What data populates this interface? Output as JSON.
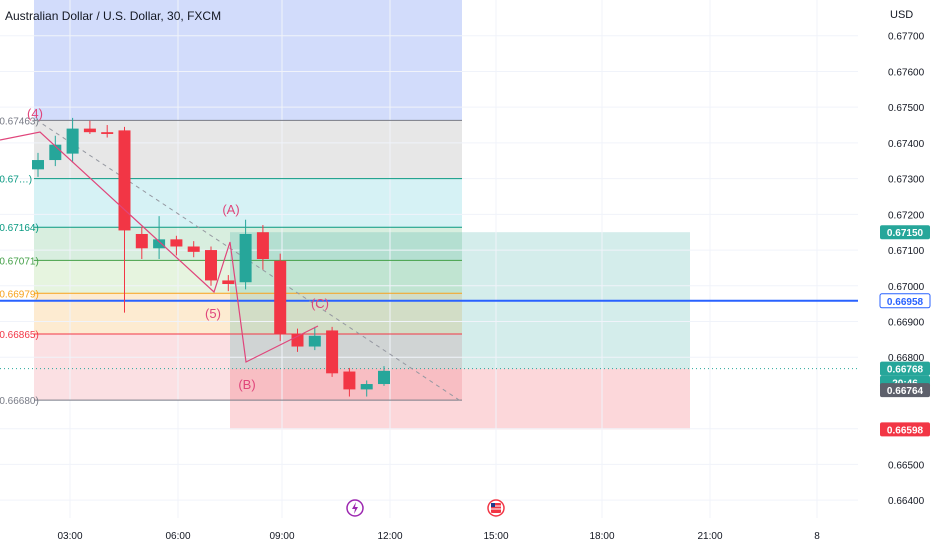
{
  "header": {
    "title": "Australian Dollar / U.S. Dollar, 30, FXCM",
    "currency": "USD"
  },
  "colors": {
    "up": "#26a69a",
    "down": "#f23645",
    "wave": "#e0457b",
    "blue_line": "#2962ff",
    "price_tag_current": "#26a69a",
    "price_tag_gray": "#5d606b",
    "target_tag": "#26a69a",
    "stop_tag": "#f23645"
  },
  "chart_data": {
    "type": "candlestick",
    "symbol": "Australian Dollar / U.S. Dollar",
    "timeframe": "30",
    "source": "FXCM",
    "ylim": [
      0.6635,
      0.678
    ],
    "y_ticks": [
      "0.67700",
      "0.67600",
      "0.67500",
      "0.67400",
      "0.67300",
      "0.67200",
      "0.67100",
      "0.67000",
      "0.66900",
      "0.66800",
      "0.66600",
      "0.66500",
      "0.66400"
    ],
    "x_ticks": [
      "03:00",
      "06:00",
      "09:00",
      "12:00",
      "15:00",
      "18:00",
      "21:00",
      "8"
    ],
    "candles": [
      {
        "t": 0.0,
        "o": 0.67326,
        "h": 0.67372,
        "l": 0.67305,
        "c": 0.67352
      },
      {
        "t": 0.5,
        "o": 0.67352,
        "h": 0.6742,
        "l": 0.67335,
        "c": 0.67395
      },
      {
        "t": 1.0,
        "o": 0.6737,
        "h": 0.6747,
        "l": 0.67345,
        "c": 0.6744
      },
      {
        "t": 1.5,
        "o": 0.6744,
        "h": 0.67462,
        "l": 0.67425,
        "c": 0.6743
      },
      {
        "t": 2.0,
        "o": 0.6743,
        "h": 0.6745,
        "l": 0.67415,
        "c": 0.67425
      },
      {
        "t": 2.5,
        "o": 0.67435,
        "h": 0.67445,
        "l": 0.66925,
        "c": 0.67155
      },
      {
        "t": 3.0,
        "o": 0.67145,
        "h": 0.67165,
        "l": 0.67075,
        "c": 0.67105
      },
      {
        "t": 3.5,
        "o": 0.67105,
        "h": 0.67195,
        "l": 0.67075,
        "c": 0.6713
      },
      {
        "t": 4.0,
        "o": 0.6713,
        "h": 0.6714,
        "l": 0.67085,
        "c": 0.6711
      },
      {
        "t": 4.5,
        "o": 0.6711,
        "h": 0.67125,
        "l": 0.6708,
        "c": 0.67095
      },
      {
        "t": 5.0,
        "o": 0.671,
        "h": 0.6711,
        "l": 0.67,
        "c": 0.67015
      },
      {
        "t": 5.5,
        "o": 0.67015,
        "h": 0.6703,
        "l": 0.66985,
        "c": 0.67005
      },
      {
        "t": 6.0,
        "o": 0.6701,
        "h": 0.67185,
        "l": 0.6699,
        "c": 0.67145
      },
      {
        "t": 6.5,
        "o": 0.6715,
        "h": 0.6717,
        "l": 0.67045,
        "c": 0.67075
      },
      {
        "t": 7.0,
        "o": 0.6707,
        "h": 0.6709,
        "l": 0.66845,
        "c": 0.66865
      },
      {
        "t": 7.5,
        "o": 0.66865,
        "h": 0.6688,
        "l": 0.66815,
        "c": 0.6683
      },
      {
        "t": 8.0,
        "o": 0.6683,
        "h": 0.66885,
        "l": 0.6682,
        "c": 0.6686
      },
      {
        "t": 8.5,
        "o": 0.66875,
        "h": 0.66885,
        "l": 0.66745,
        "c": 0.66755
      },
      {
        "t": 9.0,
        "o": 0.6676,
        "h": 0.6677,
        "l": 0.6669,
        "c": 0.6671
      },
      {
        "t": 9.5,
        "o": 0.6671,
        "h": 0.66735,
        "l": 0.6669,
        "c": 0.66725
      },
      {
        "t": 10.0,
        "o": 0.66725,
        "h": 0.66775,
        "l": 0.6672,
        "c": 0.66762
      }
    ],
    "time_axis": {
      "t0_label": "03:00",
      "t0_hour": 3.0,
      "hours_per_unit": 1.0
    },
    "fib_levels": [
      {
        "label": "(0.67463)",
        "price": 0.67463,
        "color": "#787b86"
      },
      {
        "label": "(0.67…)",
        "price": 0.673,
        "color": "#089981"
      },
      {
        "label": "(0.67164)",
        "price": 0.67164,
        "color": "#089981"
      },
      {
        "label": "(0.67071)",
        "price": 0.67071,
        "color": "#43a047"
      },
      {
        "label": "(0.66979)",
        "price": 0.66979,
        "color": "#f7a21b"
      },
      {
        "label": "(0.66865)",
        "price": 0.66865,
        "color": "#f23645"
      },
      {
        "label": "(0.66680)",
        "price": 0.6668,
        "color": "#787b86"
      }
    ],
    "wave_labels": [
      {
        "text": "(4)",
        "t": -0.3,
        "price": 0.67515
      },
      {
        "text": "(A)",
        "t": 6.6,
        "price": 0.67205
      },
      {
        "text": "(5)",
        "t": 6.6,
        "price": 0.6693
      },
      {
        "text": "(B)",
        "t": 7.7,
        "price": 0.667
      },
      {
        "text": "(C)",
        "t": 9.2,
        "price": 0.6693
      }
    ],
    "wave_path": [
      {
        "t": -0.8,
        "price": 0.6743
      },
      {
        "t": 1.5,
        "price": 0.6744
      },
      {
        "t": 6.2,
        "price": 0.66985
      },
      {
        "t": 6.9,
        "price": 0.67185
      },
      {
        "t": 7.4,
        "price": 0.6679
      },
      {
        "t": 8.9,
        "price": 0.6691
      }
    ],
    "trend_dashed": {
      "from": {
        "t": 1.0,
        "price": 0.67465
      },
      "to": {
        "t": 12.3,
        "price": 0.66675
      }
    },
    "blue_line_price": 0.66958,
    "current_price": 0.66768,
    "countdown": "20:46",
    "last_gray_price": 0.66764,
    "position": {
      "entry": 0.66768,
      "target": 0.6715,
      "stop": 0.66598,
      "t_start": 7.0,
      "t_end": 20.8
    },
    "fib_zone": {
      "t_start": 0.0,
      "t_end": 12.3,
      "top": 0.67463,
      "bottom": 0.6668
    },
    "blue_zone": {
      "t_start": 0.0,
      "t_end": 12.3,
      "top": 0.678,
      "bottom": 0.67463
    },
    "price_tags": [
      {
        "value": "0.67150",
        "role": "target"
      },
      {
        "value": "0.66958",
        "role": "blue"
      },
      {
        "value": "0.66768",
        "role": "current"
      },
      {
        "value": "20:46",
        "role": "countdown"
      },
      {
        "value": "0.66764",
        "role": "gray"
      },
      {
        "value": "0.66598",
        "role": "stop"
      }
    ],
    "event_icons": [
      {
        "name": "lightning-event-icon",
        "t": 9.5
      },
      {
        "name": "us-flag-event-icon",
        "t": 12.6
      }
    ]
  }
}
